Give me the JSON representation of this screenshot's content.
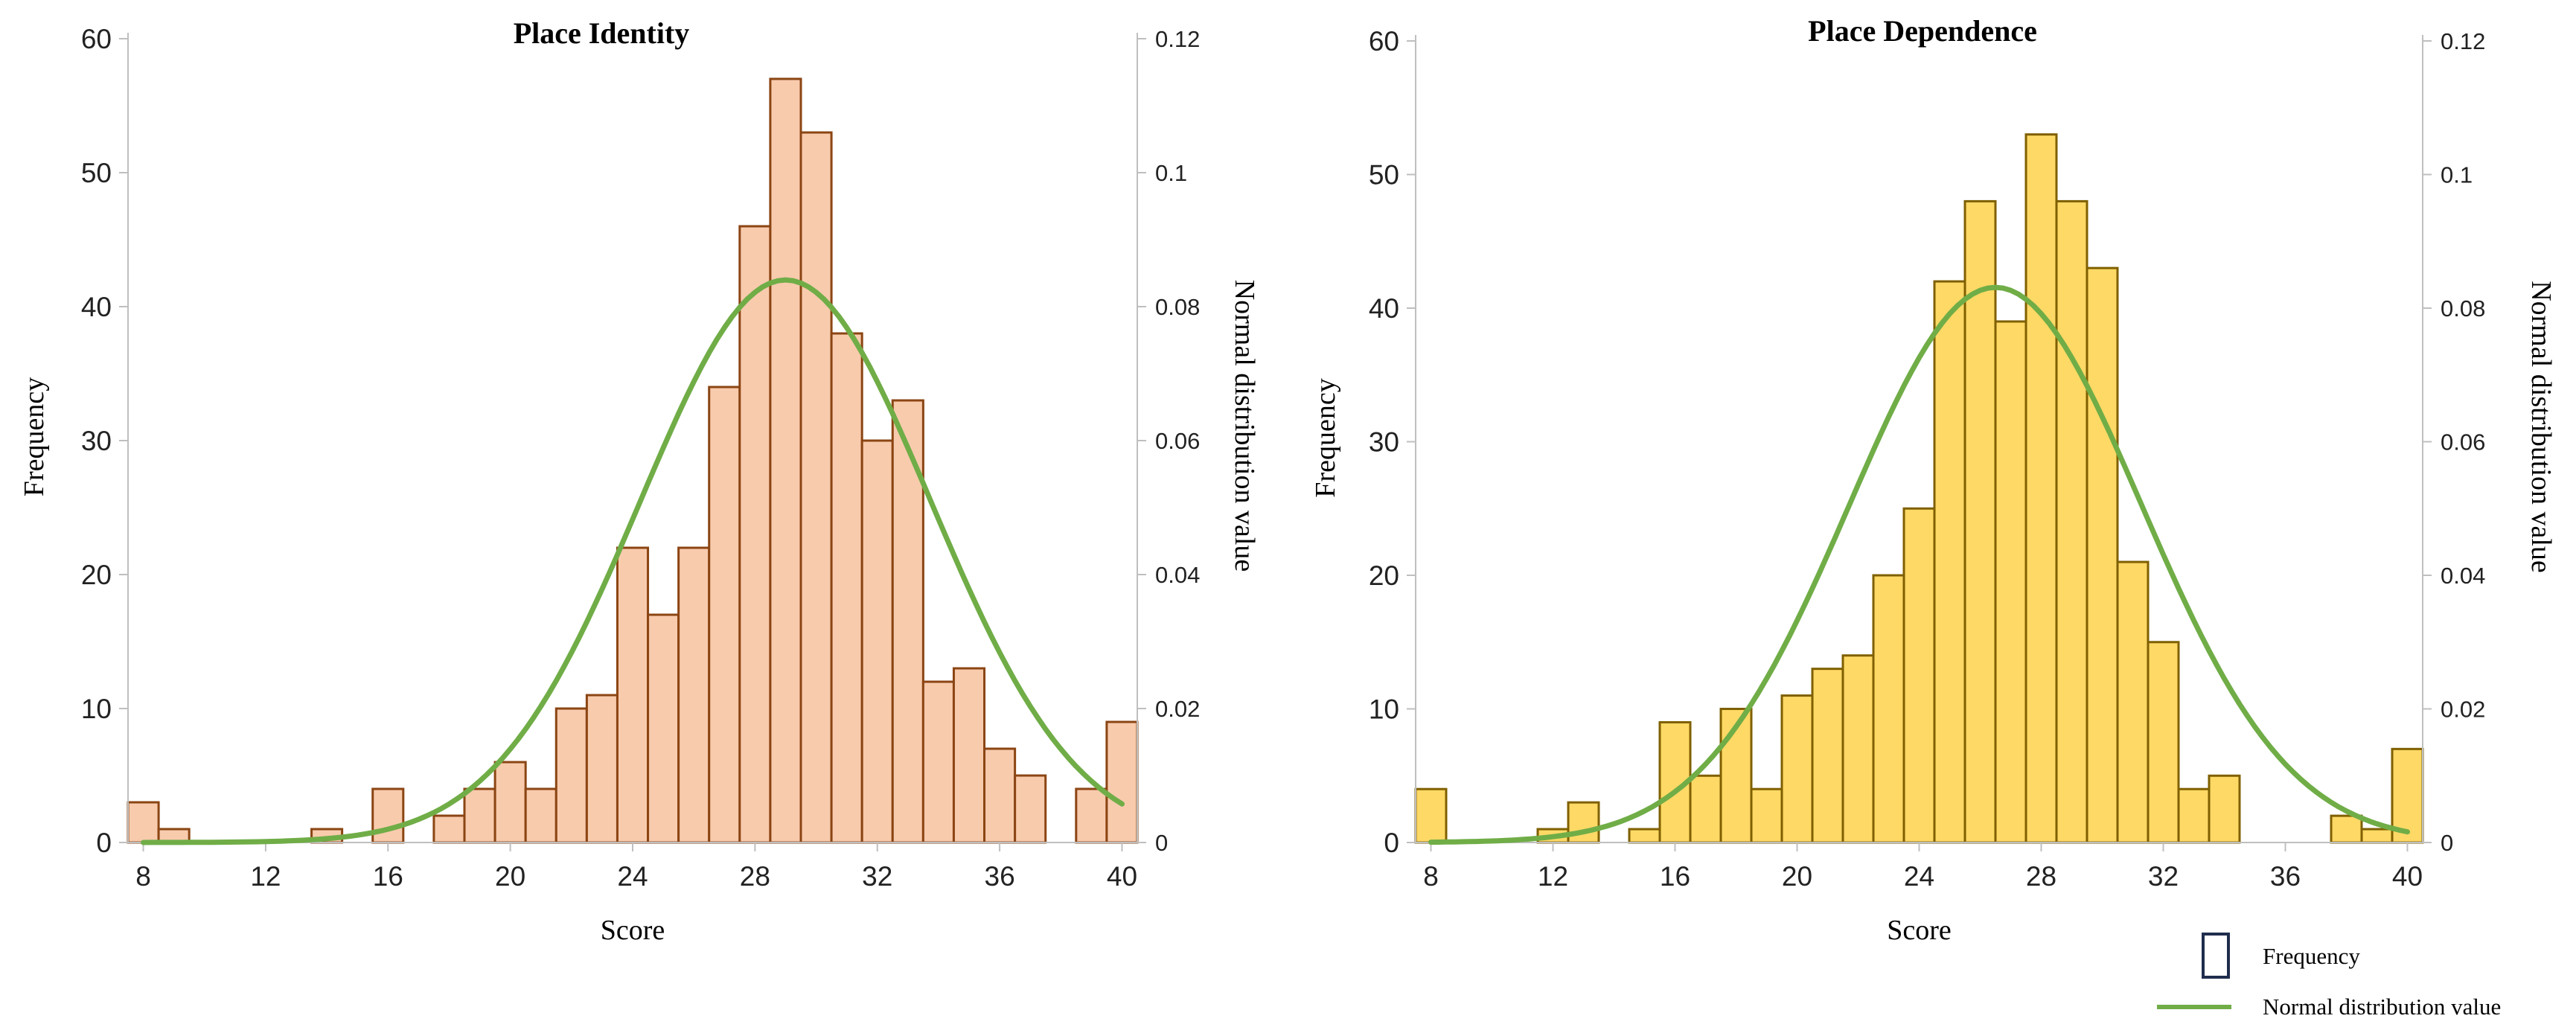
{
  "chart_data": [
    {
      "type": "bar",
      "title": "Place Identity",
      "xlabel": "Score",
      "ylabel": "Frequency",
      "y2label": "Normal distribution value",
      "xlim": [
        7.5,
        40.5
      ],
      "xticks": [
        8,
        12,
        16,
        20,
        24,
        28,
        32,
        36,
        40
      ],
      "ylim": [
        0,
        60
      ],
      "yticks": [
        0,
        10,
        20,
        30,
        40,
        50,
        60
      ],
      "y2lim": [
        0,
        0.12
      ],
      "y2ticks": [
        "0",
        "0.02",
        "0.04",
        "0.06",
        "0.08",
        "0.1",
        "0.12"
      ],
      "bar_color": "#f8cbad",
      "bar_edge": "#8b4513",
      "line_color": "#70ad47",
      "bins": [
        8,
        9,
        10,
        11,
        12,
        13,
        14,
        15,
        16,
        17,
        18,
        19,
        20,
        21,
        22,
        23,
        24,
        25,
        26,
        27,
        28,
        29,
        30,
        31,
        32,
        33,
        34,
        35,
        36,
        37,
        38,
        39,
        40
      ],
      "frequency": [
        3,
        1,
        0,
        0,
        0,
        0,
        1,
        0,
        4,
        0,
        2,
        4,
        6,
        4,
        10,
        11,
        22,
        17,
        22,
        34,
        46,
        57,
        53,
        38,
        30,
        33,
        12,
        13,
        7,
        5,
        0,
        4,
        9
      ],
      "normal_mean": 29.0,
      "normal_sd": 4.75
    },
    {
      "type": "bar",
      "title": "Place Dependence",
      "xlabel": "Score",
      "ylabel": "Frequency",
      "y2label": "Normal distribution value",
      "xlim": [
        7.5,
        40.5
      ],
      "xticks": [
        8,
        12,
        16,
        20,
        24,
        28,
        32,
        36,
        40
      ],
      "ylim": [
        0,
        60
      ],
      "yticks": [
        0,
        10,
        20,
        30,
        40,
        50,
        60
      ],
      "y2lim": [
        0,
        0.12
      ],
      "y2ticks": [
        "0",
        "0.02",
        "0.04",
        "0.06",
        "0.08",
        "0.1",
        "0.12"
      ],
      "bar_color": "#ffd966",
      "bar_edge": "#7f6000",
      "line_color": "#70ad47",
      "bins": [
        8,
        9,
        10,
        11,
        12,
        13,
        14,
        15,
        16,
        17,
        18,
        19,
        20,
        21,
        22,
        23,
        24,
        25,
        26,
        27,
        28,
        29,
        30,
        31,
        32,
        33,
        34,
        35,
        36,
        37,
        38,
        39,
        40
      ],
      "frequency": [
        4,
        0,
        0,
        0,
        1,
        3,
        0,
        1,
        9,
        5,
        10,
        4,
        11,
        13,
        14,
        20,
        25,
        42,
        48,
        39,
        53,
        48,
        43,
        21,
        15,
        4,
        5,
        0,
        0,
        0,
        2,
        1,
        7
      ],
      "normal_mean": 26.5,
      "normal_sd": 4.8
    }
  ],
  "legend": {
    "items": [
      {
        "label": "Frequency",
        "kind": "bar",
        "color": "#1f2d4d"
      },
      {
        "label": "Normal distribution value",
        "kind": "line",
        "color": "#70ad47"
      }
    ]
  }
}
